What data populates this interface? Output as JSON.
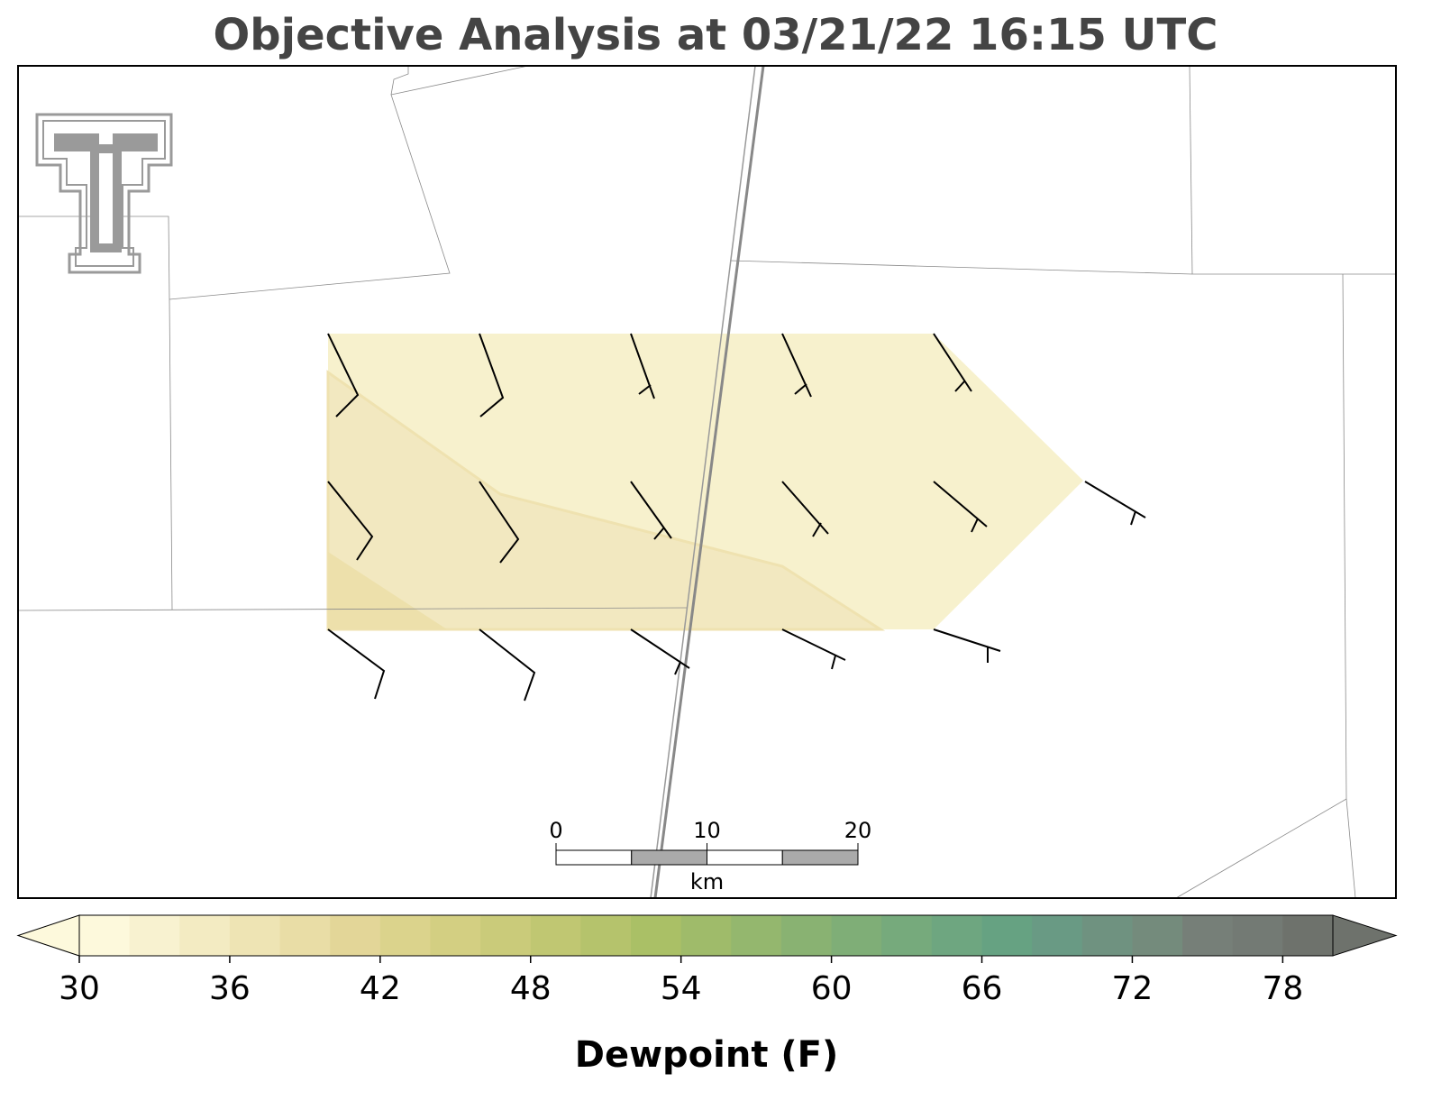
{
  "chart_data": {
    "type": "map",
    "title": "Objective Analysis at 03/21/22 16:15 UTC",
    "colorbar": {
      "label": "Dewpoint (F)",
      "lim": [
        30,
        80
      ],
      "ticks": [
        30,
        36,
        42,
        48,
        54,
        60,
        66,
        72,
        78
      ],
      "colors": [
        "#fdf9dc",
        "#f8f2d0",
        "#f3ebc2",
        "#eee4b4",
        "#e9dda6",
        "#e3d698",
        "#dbd38c",
        "#d3cf82",
        "#cacb7a",
        "#c0c772",
        "#b5c36c",
        "#aac066",
        "#9fbb6a",
        "#94b76e",
        "#89b272",
        "#7fae77",
        "#76aa7c",
        "#6ea680",
        "#66a282",
        "#699a84",
        "#6f9280",
        "#748b7c",
        "#767f78",
        "#737a74",
        "#6e726c"
      ]
    },
    "scale_bar": {
      "ticks": [
        0,
        10,
        20
      ],
      "unit": "km"
    }
  }
}
